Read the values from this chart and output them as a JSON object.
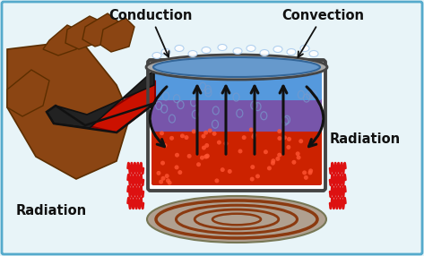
{
  "bg_color": "#e8f4f8",
  "border_color": "#55aacc",
  "labels": {
    "conduction": "Conduction",
    "convection": "Convection",
    "radiation_right": "Radiation",
    "radiation_bottom": "Radiation"
  },
  "label_color": "#111111",
  "label_fontsize": 10.5,
  "label_fontweight": "bold",
  "water_color_top": "#5599dd",
  "water_color_bottom": "#3366aa",
  "hot_color": "#cc2200",
  "radiation_color": "#dd1111",
  "burner_color": "#8B3A10",
  "handle_color_red": "#cc1100",
  "handle_color_dark": "#1a1a1a",
  "hand_color": "#8B4513",
  "arrow_color": "#111111",
  "pot_outline": "#444444",
  "pot_metal": "#c8c8c8"
}
